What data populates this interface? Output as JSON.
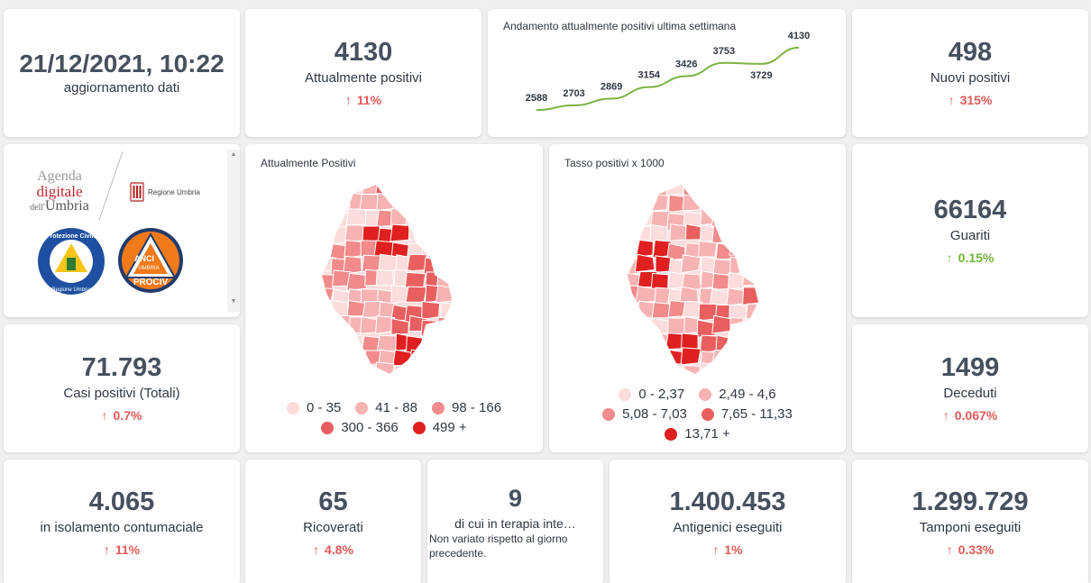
{
  "header": {
    "datetime": "21/12/2021, 10:22",
    "update_label": "aggiornamento dati"
  },
  "attualmente_positivi": {
    "value": "4130",
    "label": "Attualmente positivi",
    "change": "11%"
  },
  "trend_chart": {
    "title": "Andamento attualmente positivi ultima settimana"
  },
  "chart_data": {
    "type": "line",
    "title": "Andamento attualmente positivi ultima settimana",
    "x": [
      1,
      2,
      3,
      4,
      5,
      6,
      7,
      8
    ],
    "values": [
      2588,
      2703,
      2869,
      3154,
      3426,
      3753,
      3729,
      4130
    ],
    "labels": [
      "2588",
      "2703",
      "2869",
      "3154",
      "3426",
      "3753",
      "3729",
      "4130"
    ],
    "line_color": "#7cb342"
  },
  "nuovi_positivi": {
    "value": "498",
    "label": "Nuovi positivi",
    "change": "315%"
  },
  "logos": {
    "agenda_line1": "Agenda",
    "agenda_line2": "digitale",
    "agenda_line3a": "dell'",
    "agenda_line3b": "Umbria",
    "regione": "Regione Umbria",
    "protezione_top": "Protezione Civile",
    "protezione_bottom": "Regione Umbria",
    "anci_top": "ANCI",
    "anci_mid": "UMBRIA",
    "anci_bottom": "PROCIV"
  },
  "map1": {
    "title": "Attualmente Positivi",
    "legend": [
      "0 - 35",
      "41 - 88",
      "98 - 166",
      "300 - 366",
      "499 +"
    ],
    "legend_colors": [
      "#fcdcdc",
      "#f7b3b3",
      "#f28b8b",
      "#e95f5f",
      "#e02020"
    ]
  },
  "map2": {
    "title": "Tasso positivi x 1000",
    "legend": [
      "0 - 2,37",
      "2,49 - 4,6",
      "5,08 - 7,03",
      "7,65 - 11,33",
      "13,71 +"
    ],
    "legend_colors": [
      "#fcdcdc",
      "#f7b3b3",
      "#f28b8b",
      "#e95f5f",
      "#e02020"
    ]
  },
  "guariti": {
    "value": "66164",
    "label": "Guariti",
    "change": "0.15%"
  },
  "casi_totali": {
    "value": "71.793",
    "label": "Casi positivi (Totali)",
    "change": "0.7%"
  },
  "deceduti": {
    "value": "1499",
    "label": "Deceduti",
    "change": "0.067%"
  },
  "isolamento": {
    "value": "4.065",
    "label": "in isolamento contumaciale",
    "change": "11%"
  },
  "ricoverati": {
    "value": "65",
    "label": "Ricoverati",
    "change": "4.8%"
  },
  "terapia": {
    "value": "9",
    "label": "di cui in terapia inte…",
    "note": "Non variato rispetto al giorno precedente."
  },
  "antigenici": {
    "value": "1.400.453",
    "label": "Antigenici eseguiti",
    "change": "1%"
  },
  "tamponi": {
    "value": "1.299.729",
    "label": "Tamponi eseguiti",
    "change": "0.33%"
  },
  "icons": {
    "up_arrow": "↑",
    "scroll_up": "▲",
    "scroll_down": "▼"
  }
}
